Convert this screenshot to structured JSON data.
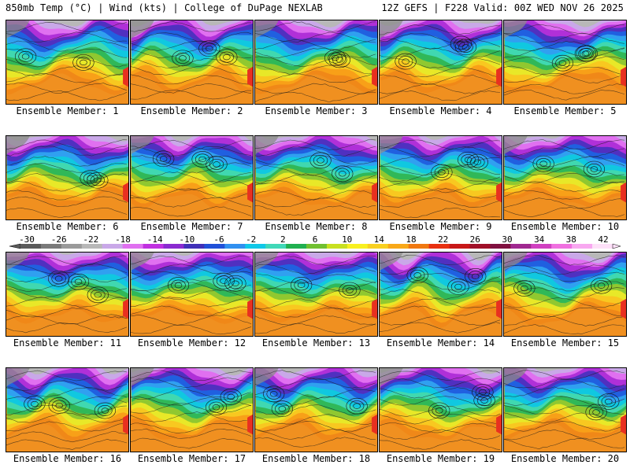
{
  "header": {
    "left": "850mb Temp (°C) | Wind (kts) | College of DuPage NEXLAB",
    "right": "12Z GEFS | F228 Valid: 00Z WED NOV 26 2025"
  },
  "panels": [
    {
      "label": "Ensemble Member: 1"
    },
    {
      "label": "Ensemble Member: 2"
    },
    {
      "label": "Ensemble Member: 3"
    },
    {
      "label": "Ensemble Member: 4"
    },
    {
      "label": "Ensemble Member: 5"
    },
    {
      "label": "Ensemble Member: 6"
    },
    {
      "label": "Ensemble Member: 7"
    },
    {
      "label": "Ensemble Member: 8"
    },
    {
      "label": "Ensemble Member: 9"
    },
    {
      "label": "Ensemble Member: 10"
    },
    {
      "label": "Ensemble Member: 11"
    },
    {
      "label": "Ensemble Member: 12"
    },
    {
      "label": "Ensemble Member: 13"
    },
    {
      "label": "Ensemble Member: 14"
    },
    {
      "label": "Ensemble Member: 15"
    },
    {
      "label": "Ensemble Member: 16"
    },
    {
      "label": "Ensemble Member: 17"
    },
    {
      "label": "Ensemble Member: 18"
    },
    {
      "label": "Ensemble Member: 19"
    },
    {
      "label": "Ensemble Member: 20"
    }
  ],
  "colorbar": {
    "labels": [
      "-30",
      "-26",
      "-22",
      "-18",
      "-14",
      "-10",
      "-6",
      "-2",
      "2",
      "6",
      "10",
      "14",
      "18",
      "22",
      "26",
      "30",
      "34",
      "38",
      "42"
    ],
    "colors": [
      "#5a5a5a",
      "#7a7a7a",
      "#9a9a9a",
      "#b8b8b8",
      "#c9a8e8",
      "#e070f0",
      "#c030e0",
      "#8a2ad0",
      "#4030b8",
      "#2050d8",
      "#3090f0",
      "#10c8e8",
      "#40d8b8",
      "#20b050",
      "#70c030",
      "#c8e020",
      "#f8f020",
      "#f8d020",
      "#f8a818",
      "#f07810",
      "#e83010",
      "#c81818",
      "#a01028",
      "#801040",
      "#a02890",
      "#d040c0",
      "#f070e0",
      "#f8a8f0",
      "#fde0f8"
    ]
  }
}
